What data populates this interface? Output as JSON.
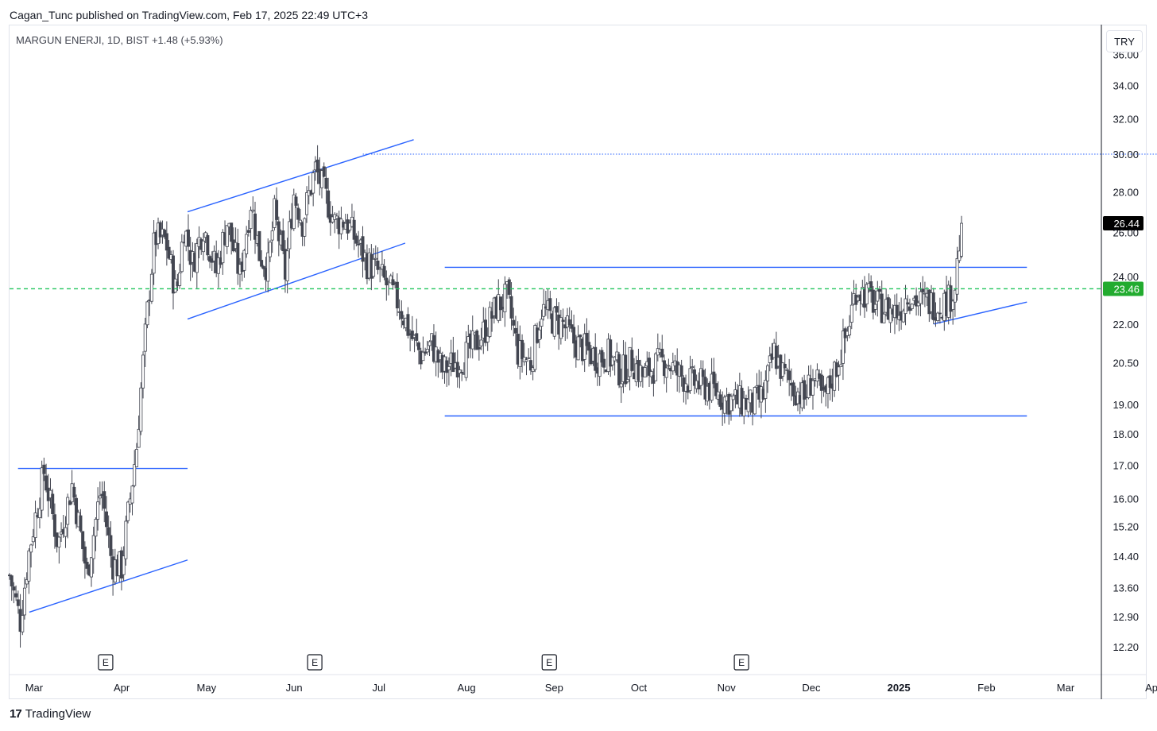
{
  "header": {
    "publisher_line": "Cagan_Tunc published on TradingView.com, Feb 17, 2025 22:49 UTC+3"
  },
  "chart_title": "MARGUN ENERJI, 1D, BIST  +1.48 (+5.93%)",
  "currency_label": "TRY",
  "footer": {
    "brand": "TradingView",
    "logo_mark": "17"
  },
  "colors": {
    "trendline": "#2962ff",
    "candle_down": "#434651",
    "candle_up": "#ffffff",
    "dashed_level": "#22c55e",
    "last_price_bg": "#000000",
    "level_label_bg": "#22ab2f"
  },
  "chart_data": {
    "type": "candlestick",
    "symbol": "MARGUN ENERJI",
    "interval": "1D",
    "exchange": "BIST",
    "change": "+1.48 (+5.93%)",
    "y_axis": {
      "scale": "log",
      "range": [
        11.6,
        38.0
      ],
      "ticks": [
        "36.00",
        "34.00",
        "32.00",
        "30.00",
        "28.00",
        "26.00",
        "24.00",
        "22.00",
        "20.50",
        "19.00",
        "18.00",
        "17.00",
        "16.00",
        "15.20",
        "14.40",
        "13.60",
        "12.90",
        "12.20"
      ]
    },
    "x_axis": {
      "labels": [
        "Mar",
        "Apr",
        "May",
        "Jun",
        "Jul",
        "Aug",
        "Sep",
        "Oct",
        "Nov",
        "Dec",
        "2025",
        "Feb",
        "Mar",
        "Apr"
      ],
      "bold_labels": [
        "2025"
      ]
    },
    "last_price": "26.44",
    "horizontal_level": "23.46",
    "earnings_markers": [
      "E",
      "E",
      "E",
      "E"
    ],
    "anchors": [
      [
        0,
        13.9
      ],
      [
        10,
        12.8
      ],
      [
        18,
        14.5
      ],
      [
        32,
        16.8
      ],
      [
        45,
        14.7
      ],
      [
        58,
        16.4
      ],
      [
        72,
        13.9
      ],
      [
        85,
        16.3
      ],
      [
        95,
        14.2
      ],
      [
        104,
        14.1
      ],
      [
        112,
        16.0
      ],
      [
        118,
        17.6
      ],
      [
        124,
        20.5
      ],
      [
        130,
        23.5
      ],
      [
        135,
        25.8
      ],
      [
        145,
        25.6
      ],
      [
        155,
        23.2
      ],
      [
        162,
        26.3
      ],
      [
        170,
        24.6
      ],
      [
        180,
        26.3
      ],
      [
        192,
        24.2
      ],
      [
        202,
        26.5
      ],
      [
        214,
        24.0
      ],
      [
        224,
        27.5
      ],
      [
        232,
        25.0
      ],
      [
        240,
        24.4
      ],
      [
        246,
        26.9
      ],
      [
        256,
        24.1
      ],
      [
        264,
        27.9
      ],
      [
        272,
        26.5
      ],
      [
        284,
        29.2
      ],
      [
        292,
        28.0
      ],
      [
        302,
        26.5
      ],
      [
        312,
        26.6
      ],
      [
        320,
        25.8
      ],
      [
        332,
        24.6
      ],
      [
        342,
        24.2
      ],
      [
        352,
        23.5
      ],
      [
        362,
        22.8
      ],
      [
        372,
        21.6
      ],
      [
        382,
        20.8
      ],
      [
        392,
        21.2
      ],
      [
        402,
        20.2
      ],
      [
        412,
        20.5
      ],
      [
        422,
        20.7
      ],
      [
        432,
        21.2
      ],
      [
        442,
        21.8
      ],
      [
        452,
        22.7
      ],
      [
        462,
        23.1
      ],
      [
        472,
        20.9
      ],
      [
        484,
        20.5
      ],
      [
        494,
        22.6
      ],
      [
        504,
        22.2
      ],
      [
        514,
        22.0
      ],
      [
        524,
        21.3
      ],
      [
        534,
        21.0
      ],
      [
        546,
        20.7
      ],
      [
        556,
        20.8
      ],
      [
        568,
        20.1
      ],
      [
        578,
        20.6
      ],
      [
        588,
        20.0
      ],
      [
        600,
        20.4
      ],
      [
        610,
        20.6
      ],
      [
        620,
        20.1
      ],
      [
        632,
        19.8
      ],
      [
        642,
        19.7
      ],
      [
        654,
        19.5
      ],
      [
        664,
        19.2
      ],
      [
        676,
        19.1
      ],
      [
        690,
        19.0
      ],
      [
        700,
        19.3
      ],
      [
        710,
        20.9
      ],
      [
        718,
        20.1
      ],
      [
        728,
        19.6
      ],
      [
        738,
        19.2
      ],
      [
        746,
        20.0
      ],
      [
        756,
        19.1
      ],
      [
        768,
        20.4
      ],
      [
        778,
        21.7
      ],
      [
        786,
        23.5
      ],
      [
        796,
        23.2
      ],
      [
        804,
        22.8
      ],
      [
        814,
        22.6
      ],
      [
        826,
        22.5
      ],
      [
        834,
        23.3
      ],
      [
        844,
        22.9
      ],
      [
        854,
        22.9
      ],
      [
        862,
        22.8
      ],
      [
        872,
        23.0
      ],
      [
        878,
        23.6
      ],
      [
        884,
        26.44
      ]
    ],
    "drawings": [
      {
        "name": "rising-channel-upper-1",
        "points": [
          [
            "2024-02-26",
            16.9
          ],
          [
            "2024-04-26",
            16.9
          ]
        ]
      },
      {
        "name": "rising-channel-lower-1",
        "points": [
          [
            "2024-03-01",
            13.0
          ],
          [
            "2024-04-26",
            14.3
          ]
        ]
      },
      {
        "name": "rising-channel-upper-2",
        "points": [
          [
            "2024-04-26",
            27.0
          ],
          [
            "2024-07-15",
            30.8
          ]
        ]
      },
      {
        "name": "rising-channel-lower-2",
        "points": [
          [
            "2024-04-26",
            22.2
          ],
          [
            "2024-07-12",
            25.5
          ]
        ]
      },
      {
        "name": "range-top",
        "points": [
          [
            "2024-07-26",
            24.4
          ],
          [
            "2025-02-17",
            24.4
          ]
        ]
      },
      {
        "name": "range-bottom",
        "points": [
          [
            "2024-07-26",
            18.6
          ],
          [
            "2025-02-17",
            18.6
          ]
        ]
      },
      {
        "name": "triangle-support",
        "points": [
          [
            "2025-01-15",
            22.0
          ],
          [
            "2025-02-17",
            22.9
          ]
        ]
      },
      {
        "name": "resistance-dotted",
        "points": [
          [
            "2024-06-27",
            30.0
          ],
          [
            "2025-04-10",
            30.0
          ]
        ]
      }
    ]
  }
}
